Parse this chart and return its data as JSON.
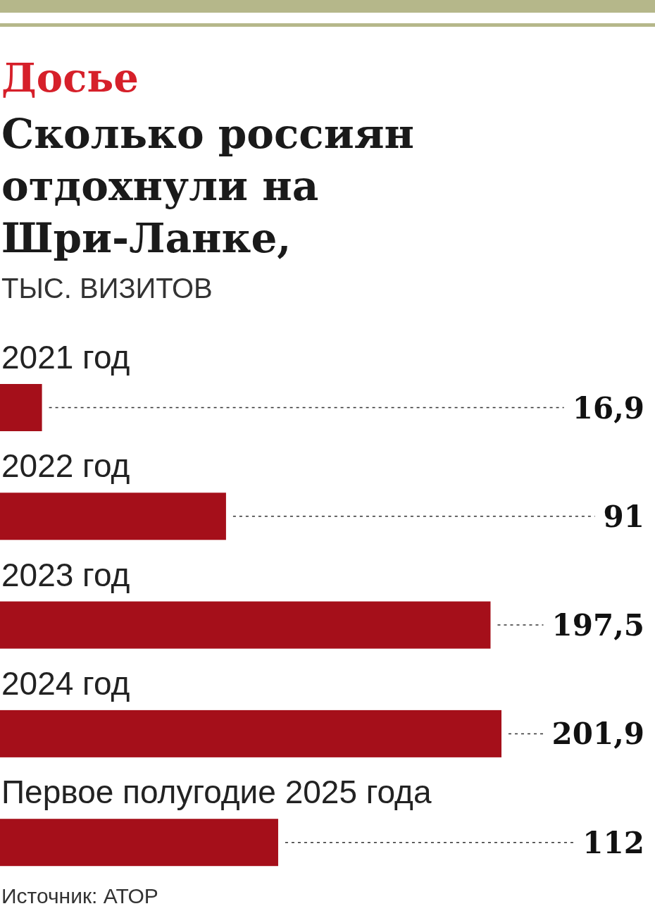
{
  "chart_data": {
    "type": "bar",
    "orientation": "horizontal",
    "title": "Сколько россиян отдохнули на Шри-Ланке,",
    "subtitle": "ТЫС. ВИЗИТОВ",
    "annotations": [
      "Досье",
      "Источник: АТОР"
    ],
    "categories": [
      "2021 год",
      "2022 год",
      "2023 год",
      "2024 год",
      "Первое полугодие 2025 года"
    ],
    "values": [
      16.9,
      91,
      197.5,
      201.9,
      112
    ],
    "color": "#a50f1a",
    "data_labels": true,
    "value_labels": [
      "16,9",
      "91",
      "197,5",
      "201,9",
      "112"
    ]
  }
}
